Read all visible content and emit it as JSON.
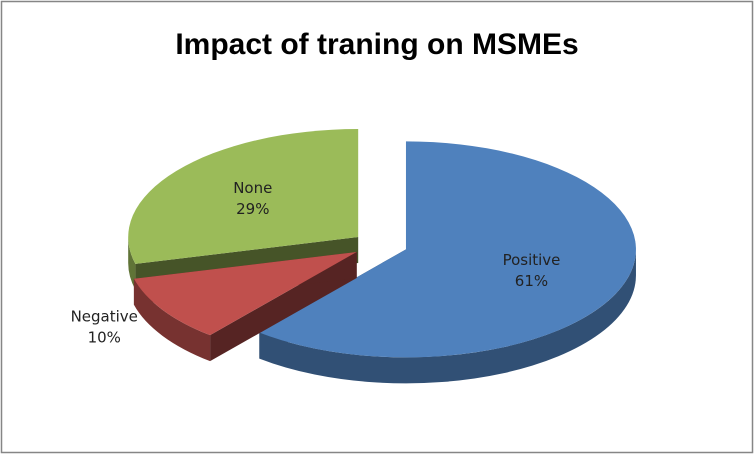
{
  "chart_data": {
    "type": "pie",
    "title": "Impact of traning on MSMEs",
    "categories": [
      "Positive",
      "Negative",
      "None"
    ],
    "values": [
      61,
      10,
      29
    ],
    "value_labels": [
      "61%",
      "10%",
      "29%"
    ],
    "colors": [
      "#4f81bd",
      "#c0504d",
      "#9bbb59"
    ],
    "exploded": true,
    "three_d": true
  }
}
